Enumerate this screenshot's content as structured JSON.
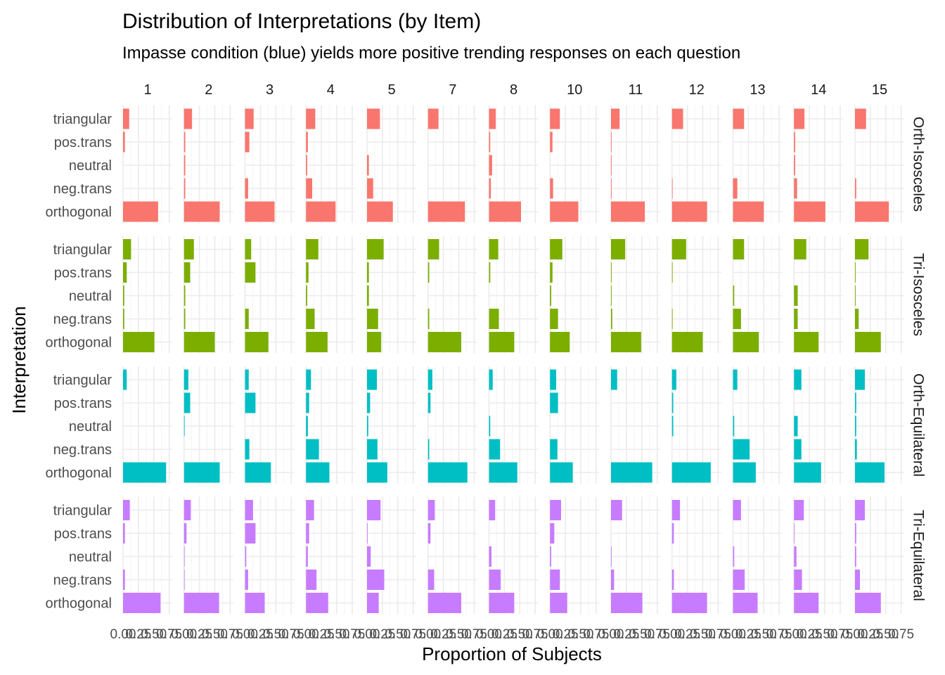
{
  "chart_data": {
    "type": "bar",
    "orientation": "horizontal",
    "title": "Distribution of Interpretations (by Item)",
    "subtitle": "Impasse condition (blue) yields more positive trending responses on each question",
    "xlabel": "Proportion of Subjects",
    "ylabel": "Interpretation",
    "xlim": [
      0,
      0.8
    ],
    "x_ticks": [
      0.0,
      0.25,
      0.5,
      0.75
    ],
    "x_tick_labels": [
      "0.00",
      "0.25",
      "0.50",
      "0.75"
    ],
    "grid": true,
    "legend": "none",
    "columns": [
      "1",
      "2",
      "3",
      "4",
      "5",
      "7",
      "8",
      "10",
      "11",
      "12",
      "13",
      "14",
      "15"
    ],
    "categories": [
      "triangular",
      "pos.trans",
      "neutral",
      "neg.trans",
      "orthogonal"
    ],
    "rows": [
      {
        "name": "Orth-Isosceles",
        "color": "#F8766D",
        "values": [
          [
            0.1,
            0.03,
            0.0,
            0.0,
            0.57
          ],
          [
            0.13,
            0.02,
            0.02,
            0.02,
            0.58
          ],
          [
            0.14,
            0.07,
            0.0,
            0.05,
            0.48
          ],
          [
            0.15,
            0.03,
            0.02,
            0.1,
            0.48
          ],
          [
            0.21,
            0.0,
            0.03,
            0.1,
            0.42
          ],
          [
            0.17,
            0.0,
            0.0,
            0.0,
            0.6
          ],
          [
            0.11,
            0.02,
            0.05,
            0.03,
            0.52
          ],
          [
            0.16,
            0.04,
            0.0,
            0.05,
            0.46
          ],
          [
            0.14,
            0.01,
            0.01,
            0.01,
            0.55
          ],
          [
            0.18,
            0.0,
            0.0,
            0.01,
            0.57
          ],
          [
            0.18,
            0.0,
            0.0,
            0.07,
            0.5
          ],
          [
            0.17,
            0.02,
            0.02,
            0.05,
            0.51
          ],
          [
            0.18,
            0.0,
            0.0,
            0.02,
            0.55
          ]
        ]
      },
      {
        "name": "Tri-Isosceles",
        "color": "#7CAE00",
        "values": [
          [
            0.13,
            0.06,
            0.02,
            0.02,
            0.51
          ],
          [
            0.16,
            0.1,
            0.02,
            0.02,
            0.5
          ],
          [
            0.1,
            0.17,
            0.0,
            0.06,
            0.38
          ],
          [
            0.2,
            0.04,
            0.02,
            0.14,
            0.35
          ],
          [
            0.27,
            0.03,
            0.03,
            0.18,
            0.23
          ],
          [
            0.18,
            0.02,
            0.0,
            0.02,
            0.54
          ],
          [
            0.15,
            0.02,
            0.0,
            0.16,
            0.41
          ],
          [
            0.2,
            0.04,
            0.02,
            0.13,
            0.32
          ],
          [
            0.23,
            0.01,
            0.01,
            0.02,
            0.49
          ],
          [
            0.23,
            0.01,
            0.0,
            0.01,
            0.5
          ],
          [
            0.18,
            0.0,
            0.02,
            0.13,
            0.42
          ],
          [
            0.2,
            0.0,
            0.06,
            0.06,
            0.4
          ],
          [
            0.22,
            0.01,
            0.01,
            0.06,
            0.42
          ]
        ]
      },
      {
        "name": "Orth-Equilateral",
        "color": "#00BFC4",
        "values": [
          [
            0.06,
            0.0,
            0.0,
            0.0,
            0.7
          ],
          [
            0.07,
            0.1,
            0.01,
            0.0,
            0.58
          ],
          [
            0.06,
            0.17,
            0.0,
            0.07,
            0.42
          ],
          [
            0.08,
            0.05,
            0.03,
            0.21,
            0.38
          ],
          [
            0.16,
            0.05,
            0.02,
            0.17,
            0.33
          ],
          [
            0.07,
            0.04,
            0.0,
            0.02,
            0.64
          ],
          [
            0.06,
            0.0,
            0.02,
            0.18,
            0.46
          ],
          [
            0.1,
            0.13,
            0.0,
            0.12,
            0.37
          ],
          [
            0.1,
            0.0,
            0.0,
            0.0,
            0.67
          ],
          [
            0.07,
            0.02,
            0.02,
            0.0,
            0.63
          ],
          [
            0.07,
            0.0,
            0.02,
            0.27,
            0.37
          ],
          [
            0.12,
            0.0,
            0.06,
            0.12,
            0.44
          ],
          [
            0.16,
            0.02,
            0.02,
            0.03,
            0.48
          ]
        ]
      },
      {
        "name": "Tri-Equilateral",
        "color": "#C77CFF",
        "values": [
          [
            0.11,
            0.03,
            0.0,
            0.03,
            0.61
          ],
          [
            0.11,
            0.04,
            0.01,
            0.01,
            0.57
          ],
          [
            0.13,
            0.17,
            0.02,
            0.05,
            0.32
          ],
          [
            0.13,
            0.05,
            0.03,
            0.17,
            0.36
          ],
          [
            0.22,
            0.01,
            0.06,
            0.28,
            0.19
          ],
          [
            0.11,
            0.04,
            0.0,
            0.1,
            0.54
          ],
          [
            0.1,
            0.0,
            0.04,
            0.19,
            0.41
          ],
          [
            0.18,
            0.07,
            0.02,
            0.16,
            0.28
          ],
          [
            0.18,
            0.0,
            0.01,
            0.05,
            0.51
          ],
          [
            0.13,
            0.03,
            0.0,
            0.03,
            0.57
          ],
          [
            0.13,
            0.0,
            0.02,
            0.19,
            0.4
          ],
          [
            0.16,
            0.01,
            0.04,
            0.13,
            0.4
          ],
          [
            0.16,
            0.02,
            0.02,
            0.08,
            0.42
          ]
        ]
      }
    ]
  }
}
